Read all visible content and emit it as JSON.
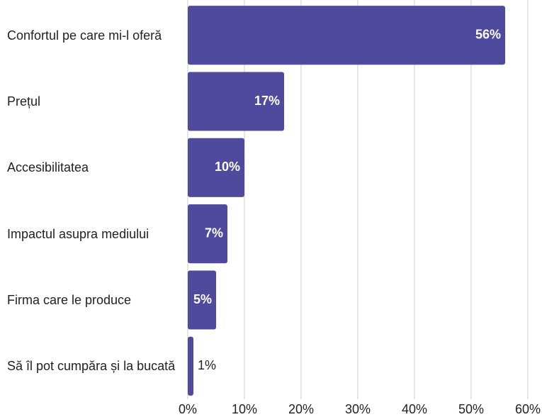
{
  "chart_data": {
    "type": "bar",
    "orientation": "horizontal",
    "categories": [
      "Confortul pe care mi-l oferă",
      "Prețul",
      "Accesibilitatea",
      "Impactul asupra mediului",
      "Firma care le produce",
      "Să îl pot cumpăra și la bucată"
    ],
    "values": [
      56,
      17,
      10,
      7,
      5,
      1
    ],
    "value_labels": [
      "56%",
      "17%",
      "10%",
      "7%",
      "5%",
      "1%"
    ],
    "color": "#4f4a9e",
    "xlim": [
      0,
      60
    ],
    "xticks": [
      {
        "value": 0,
        "label": "0%"
      },
      {
        "value": 10,
        "label": "10%"
      },
      {
        "value": 20,
        "label": "20%"
      },
      {
        "value": 30,
        "label": "30%"
      },
      {
        "value": 40,
        "label": "40%"
      },
      {
        "value": 50,
        "label": "50%"
      },
      {
        "value": 60,
        "label": "60%"
      }
    ],
    "grid": true
  }
}
